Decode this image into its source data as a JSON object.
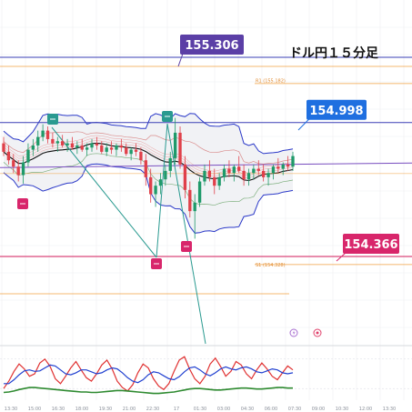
{
  "chart_data": {
    "type": "candlestick",
    "title": "ドル円１５分足",
    "price_range": [
      154.1,
      155.45
    ],
    "price_labels": [
      {
        "value": 155.306,
        "text": "155.306",
        "color": "#5b3fa6"
      },
      {
        "value": 154.998,
        "text": "154.998",
        "color": "#1f6fe0"
      },
      {
        "value": 154.366,
        "text": "154.366",
        "color": "#d8266b"
      }
    ],
    "levels": [
      {
        "text": "R1 (155.182)",
        "value": 155.182
      },
      {
        "text": "S1 (154.328)",
        "value": 154.328
      }
    ],
    "x_ticks": [
      "13:30",
      "15:00",
      "16:30",
      "18:00",
      "19:30",
      "21:00",
      "22:30",
      "17",
      "01:30",
      "03:00",
      "04:30",
      "06:00",
      "07:30",
      "09:00",
      "10:30",
      "12:00",
      "13:30"
    ],
    "candles": [
      [
        154.9,
        154.93,
        154.84,
        154.86
      ],
      [
        154.86,
        154.89,
        154.8,
        154.82
      ],
      [
        154.82,
        154.85,
        154.76,
        154.79
      ],
      [
        154.79,
        154.82,
        154.72,
        154.75
      ],
      [
        154.75,
        154.84,
        154.71,
        154.81
      ],
      [
        154.81,
        154.9,
        154.79,
        154.87
      ],
      [
        154.87,
        154.92,
        154.84,
        154.89
      ],
      [
        154.89,
        154.96,
        154.86,
        154.93
      ],
      [
        154.93,
        154.99,
        154.91,
        154.96
      ],
      [
        154.96,
        154.98,
        154.9,
        154.92
      ],
      [
        154.92,
        154.95,
        154.88,
        154.9
      ],
      [
        154.9,
        154.93,
        154.86,
        154.91
      ],
      [
        154.91,
        154.94,
        154.88,
        154.89
      ],
      [
        154.89,
        154.92,
        154.86,
        154.9
      ],
      [
        154.9,
        154.93,
        154.87,
        154.88
      ],
      [
        154.88,
        154.91,
        154.85,
        154.89
      ],
      [
        154.89,
        154.92,
        154.86,
        154.87
      ],
      [
        154.87,
        154.9,
        154.84,
        154.88
      ],
      [
        154.88,
        154.92,
        154.86,
        154.9
      ],
      [
        154.9,
        154.93,
        154.87,
        154.89
      ],
      [
        154.89,
        154.91,
        154.85,
        154.86
      ],
      [
        154.86,
        154.9,
        154.84,
        154.88
      ],
      [
        154.88,
        154.91,
        154.85,
        154.87
      ],
      [
        154.87,
        154.9,
        154.84,
        154.89
      ],
      [
        154.89,
        154.92,
        154.86,
        154.88
      ],
      [
        154.88,
        154.9,
        154.84,
        154.85
      ],
      [
        154.85,
        154.88,
        154.82,
        154.87
      ],
      [
        154.87,
        154.9,
        154.84,
        154.86
      ],
      [
        154.86,
        154.88,
        154.8,
        154.82
      ],
      [
        154.82,
        154.85,
        154.7,
        154.74
      ],
      [
        154.74,
        154.78,
        154.62,
        154.66
      ],
      [
        154.66,
        154.72,
        154.6,
        154.7
      ],
      [
        154.7,
        154.76,
        154.66,
        154.73
      ],
      [
        154.73,
        154.8,
        154.7,
        154.77
      ],
      [
        154.77,
        154.86,
        154.74,
        154.83
      ],
      [
        154.83,
        155.02,
        154.8,
        154.95
      ],
      [
        154.95,
        154.98,
        154.78,
        154.8
      ],
      [
        154.8,
        154.84,
        154.64,
        154.68
      ],
      [
        154.68,
        154.72,
        154.55,
        154.58
      ],
      [
        154.58,
        154.66,
        154.45,
        154.62
      ],
      [
        154.62,
        154.74,
        154.6,
        154.72
      ],
      [
        154.72,
        154.8,
        154.7,
        154.77
      ],
      [
        154.77,
        154.82,
        154.72,
        154.74
      ],
      [
        154.74,
        154.78,
        154.66,
        154.7
      ],
      [
        154.7,
        154.76,
        154.68,
        154.74
      ],
      [
        154.74,
        154.8,
        154.72,
        154.78
      ],
      [
        154.78,
        154.82,
        154.74,
        154.76
      ],
      [
        154.76,
        154.8,
        154.72,
        154.79
      ],
      [
        154.79,
        154.84,
        154.76,
        154.77
      ],
      [
        154.77,
        154.8,
        154.7,
        154.73
      ],
      [
        154.73,
        154.78,
        154.7,
        154.76
      ],
      [
        154.76,
        154.8,
        154.73,
        154.78
      ],
      [
        154.78,
        154.82,
        154.75,
        154.77
      ],
      [
        154.77,
        154.8,
        154.72,
        154.74
      ],
      [
        154.74,
        154.78,
        154.7,
        154.76
      ],
      [
        154.76,
        154.8,
        154.73,
        154.79
      ],
      [
        154.79,
        154.83,
        154.76,
        154.78
      ],
      [
        154.78,
        154.81,
        154.75,
        154.8
      ],
      [
        154.8,
        154.84,
        154.77,
        154.79
      ],
      [
        154.79,
        154.86,
        154.77,
        154.84
      ]
    ],
    "oscillator": {
      "range": [
        0,
        100
      ],
      "series": [
        {
          "color": "#e03030",
          "values": [
            20,
            35,
            55,
            70,
            60,
            45,
            50,
            72,
            80,
            65,
            40,
            30,
            45,
            62,
            75,
            58,
            42,
            35,
            50,
            68,
            78,
            60,
            35,
            22,
            15,
            28,
            52,
            70,
            62,
            40,
            25,
            18,
            30,
            55,
            78,
            85,
            60,
            40,
            30,
            45,
            70,
            82,
            65,
            45,
            55,
            75,
            68,
            50,
            40,
            58,
            72,
            60,
            45,
            38,
            52,
            66,
            58
          ]
        },
        {
          "color": "#2040d0",
          "values": [
            30,
            30,
            38,
            48,
            56,
            58,
            55,
            56,
            62,
            68,
            66,
            58,
            50,
            48,
            52,
            58,
            58,
            54,
            50,
            52,
            58,
            62,
            60,
            52,
            42,
            35,
            32,
            38,
            48,
            54,
            52,
            46,
            40,
            38,
            44,
            54,
            62,
            64,
            58,
            50,
            46,
            52,
            60,
            64,
            60,
            58,
            62,
            64,
            60,
            54,
            52,
            56,
            60,
            58,
            52,
            50,
            52
          ]
        },
        {
          "color": "#2e8a30",
          "values": [
            12,
            13,
            15,
            18,
            20,
            22,
            22,
            21,
            20,
            19,
            18,
            17,
            16,
            15,
            14,
            13,
            13,
            12,
            12,
            13,
            14,
            15,
            16,
            16,
            15,
            14,
            13,
            12,
            11,
            10,
            10,
            11,
            12,
            13,
            15,
            17,
            19,
            20,
            20,
            19,
            18,
            17,
            17,
            18,
            19,
            20,
            21,
            21,
            20,
            19,
            19,
            20,
            21,
            22,
            22,
            21,
            21
          ]
        }
      ]
    }
  }
}
